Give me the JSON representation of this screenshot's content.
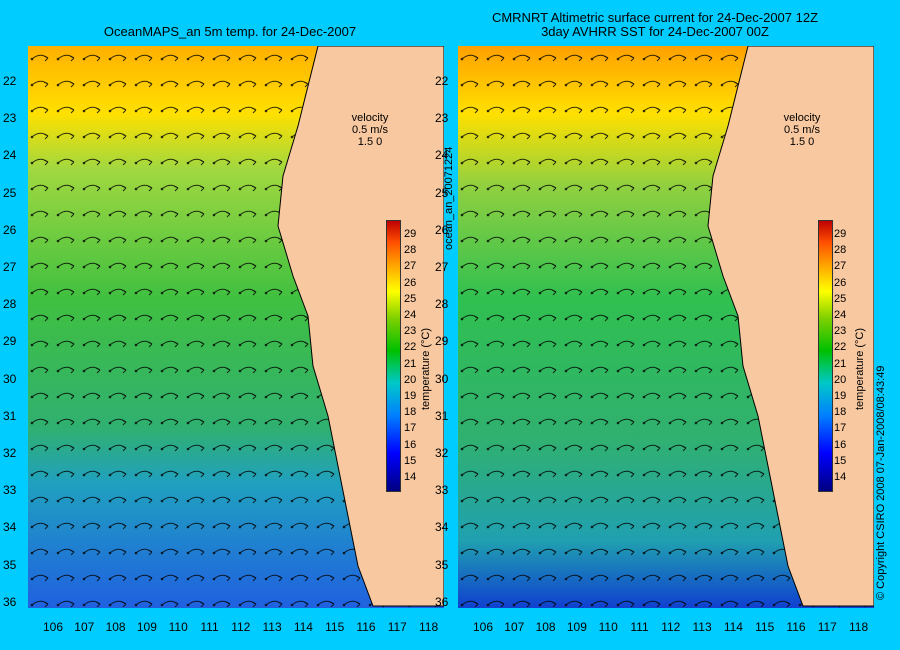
{
  "left_title": "OceanMAPS_an 5m temp. for 24-Dec-2007",
  "right_title_line1": "CMRNRT Altimetric surface current for 24-Dec-2007 12Z",
  "right_title_line2": "3day AVHRR SST for 24-Dec-2007 00Z",
  "y_ticks": [
    "22",
    "23",
    "24",
    "25",
    "26",
    "27",
    "28",
    "29",
    "30",
    "31",
    "32",
    "33",
    "34",
    "35",
    "36"
  ],
  "x_ticks": [
    "106",
    "107",
    "108",
    "109",
    "110",
    "111",
    "112",
    "113",
    "114",
    "115",
    "116",
    "117",
    "118"
  ],
  "velocity_label": "velocity",
  "velocity_scale": "0.5 m/s",
  "velocity_scale2": "1.5 0",
  "colorbar_ticks": [
    "29",
    "28",
    "27",
    "26",
    "25",
    "24",
    "23",
    "22",
    "21",
    "20",
    "19",
    "18",
    "17",
    "16",
    "15",
    "14"
  ],
  "colorbar_unit": "temperature (°C)",
  "side_label": "ocean_an_20071224",
  "copyright": "© Copyright CSIRO 2008   07-Jan-2008/08:43:49",
  "colors": {
    "background": "#00ccff",
    "land": "#f8c8a0"
  }
}
